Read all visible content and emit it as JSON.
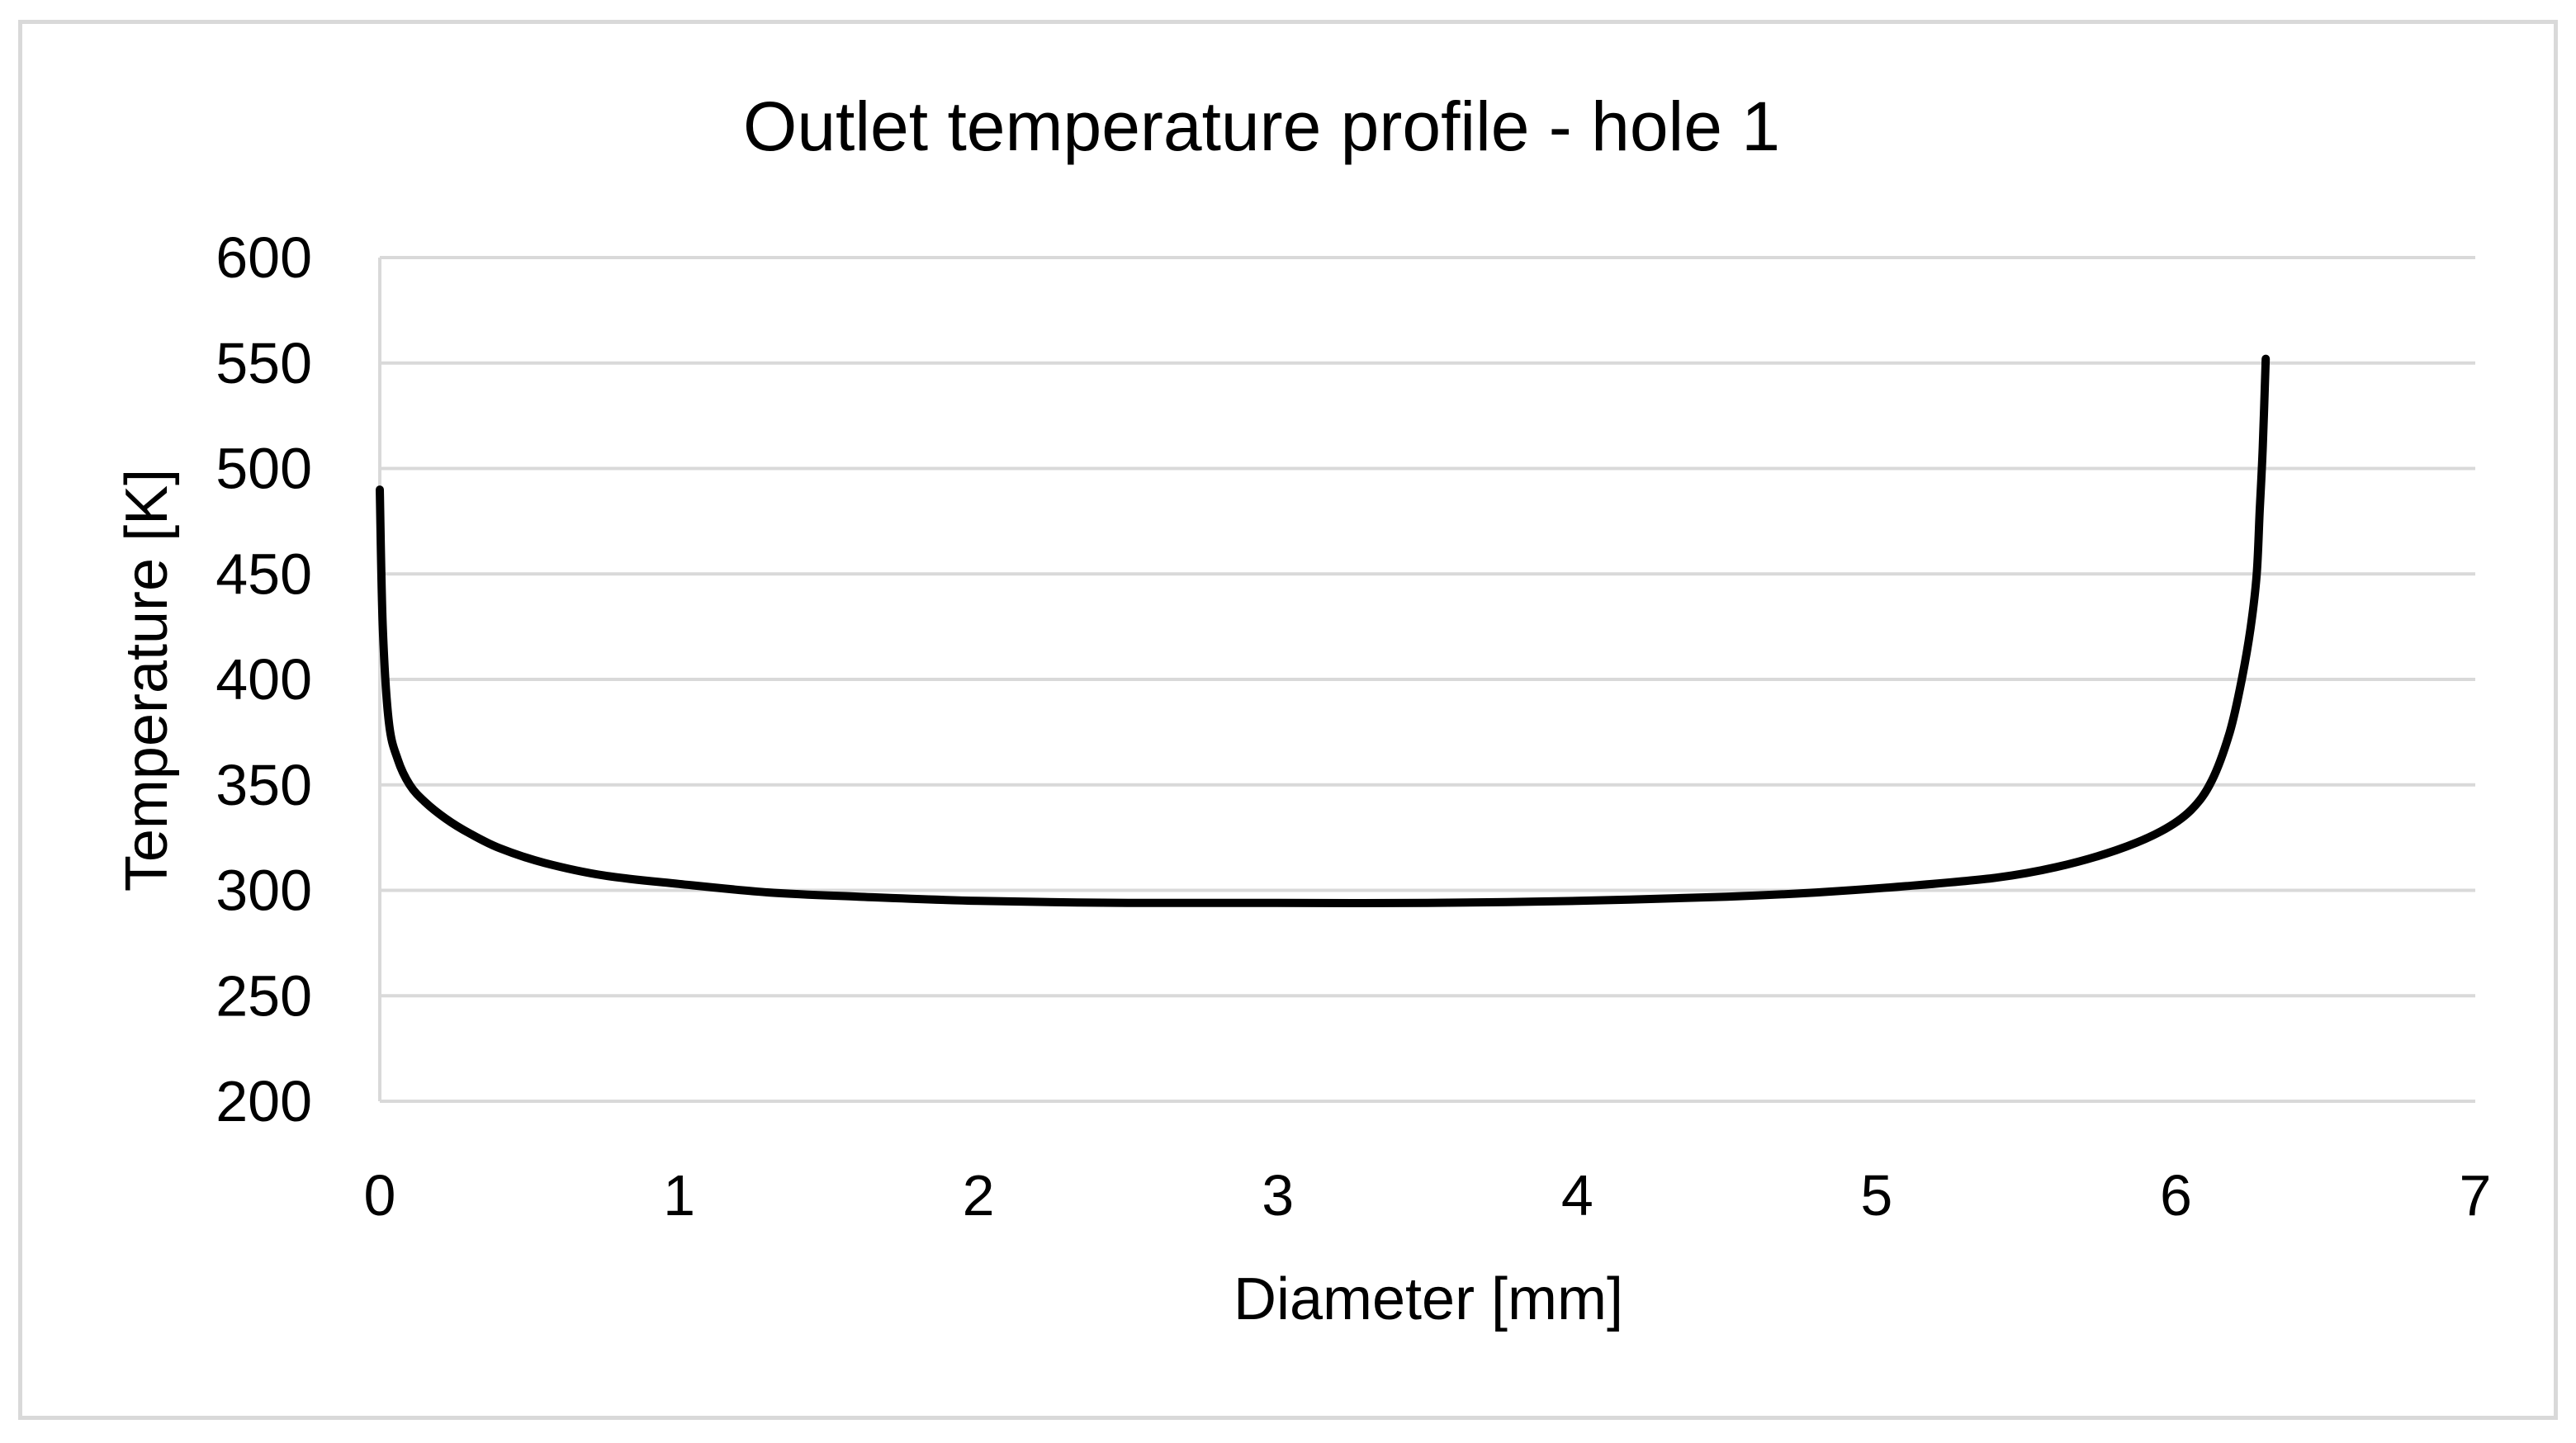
{
  "chart_data": {
    "type": "line",
    "title": "Outlet temperature profile - hole 1",
    "xlabel": "Diameter [mm]",
    "ylabel": "Temperature [K]",
    "xlim": [
      0,
      7
    ],
    "ylim": [
      200,
      600
    ],
    "x_ticks": [
      "0",
      "1",
      "2",
      "3",
      "4",
      "5",
      "6",
      "7"
    ],
    "y_ticks": [
      "200",
      "250",
      "300",
      "350",
      "400",
      "450",
      "500",
      "550",
      "600"
    ],
    "grid": true,
    "legend": "none",
    "line_color": "#000000",
    "gridline_color": "#d9d9d9",
    "series": [
      {
        "x": [
          0,
          0.01,
          0.03,
          0.06,
          0.1,
          0.15,
          0.22,
          0.3,
          0.4,
          0.55,
          0.75,
          1.0,
          1.3,
          1.6,
          2.0,
          2.5,
          3.0,
          3.5,
          4.0,
          4.5,
          4.8,
          5.1,
          5.4,
          5.6,
          5.8,
          5.95,
          6.05,
          6.12,
          6.18,
          6.22,
          6.25,
          6.27,
          6.28,
          6.29,
          6.3
        ],
        "y": [
          490,
          425,
          380,
          362,
          350,
          342,
          334,
          327,
          320,
          313,
          307,
          303,
          299,
          297,
          295,
          294,
          294,
          294,
          295,
          297,
          299,
          302,
          306,
          311,
          319,
          328,
          338,
          352,
          375,
          400,
          425,
          450,
          480,
          510,
          552
        ]
      }
    ]
  }
}
